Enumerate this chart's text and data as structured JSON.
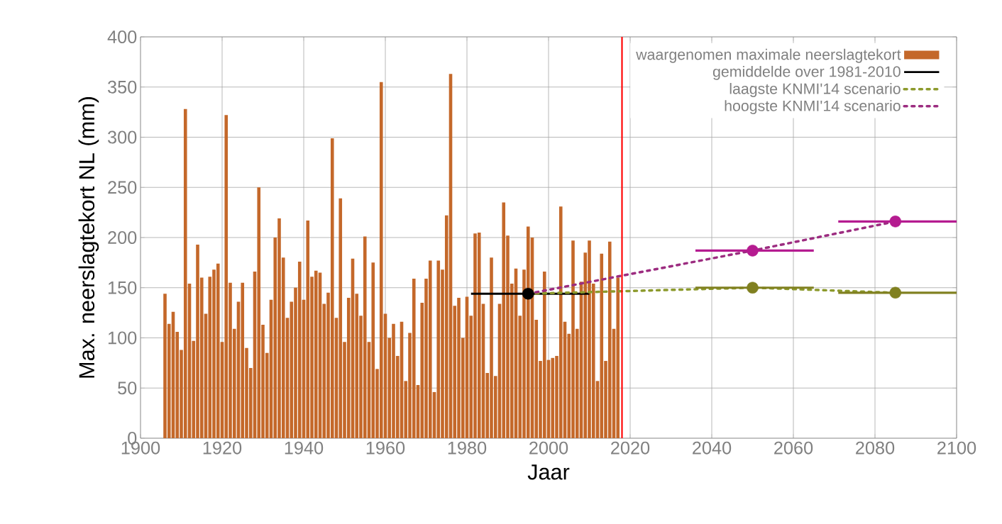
{
  "chart_data": {
    "type": "bar",
    "xlabel": "Jaar",
    "ylabel": "Max. neerslagtekort NL (mm)",
    "xlim": [
      1900,
      2100
    ],
    "ylim": [
      0,
      400
    ],
    "xticks": [
      1900,
      1920,
      1940,
      1960,
      1980,
      2000,
      2020,
      2040,
      2060,
      2080,
      2100
    ],
    "yticks": [
      0,
      50,
      100,
      150,
      200,
      250,
      300,
      350,
      400
    ],
    "grid": true,
    "legend": "top right",
    "series": [
      {
        "name": "waargenomen maximale neerslagtekort",
        "color": "#c4682a",
        "x": [
          1906,
          1907,
          1908,
          1909,
          1910,
          1911,
          1912,
          1913,
          1914,
          1915,
          1916,
          1917,
          1918,
          1919,
          1920,
          1921,
          1922,
          1923,
          1924,
          1925,
          1926,
          1927,
          1928,
          1929,
          1930,
          1931,
          1932,
          1933,
          1934,
          1935,
          1936,
          1937,
          1938,
          1939,
          1940,
          1941,
          1942,
          1943,
          1944,
          1945,
          1946,
          1947,
          1948,
          1949,
          1950,
          1951,
          1952,
          1953,
          1954,
          1955,
          1956,
          1957,
          1958,
          1959,
          1960,
          1961,
          1962,
          1963,
          1964,
          1965,
          1966,
          1967,
          1968,
          1969,
          1970,
          1971,
          1972,
          1973,
          1974,
          1975,
          1976,
          1977,
          1978,
          1979,
          1980,
          1981,
          1982,
          1983,
          1984,
          1985,
          1986,
          1987,
          1988,
          1989,
          1990,
          1991,
          1992,
          1993,
          1994,
          1995,
          1996,
          1997,
          1998,
          1999,
          2000,
          2001,
          2002,
          2003,
          2004,
          2005,
          2006,
          2007,
          2008,
          2009,
          2010,
          2011,
          2012,
          2013,
          2014,
          2015,
          2016,
          2017
        ],
        "values": [
          144,
          114,
          126,
          106,
          88,
          328,
          154,
          97,
          193,
          160,
          124,
          161,
          168,
          174,
          96,
          322,
          155,
          109,
          136,
          155,
          90,
          70,
          166,
          250,
          113,
          85,
          138,
          200,
          219,
          180,
          120,
          136,
          150,
          176,
          138,
          217,
          161,
          167,
          165,
          134,
          145,
          299,
          120,
          239,
          96,
          140,
          179,
          144,
          122,
          201,
          96,
          175,
          69,
          355,
          124,
          100,
          114,
          82,
          116,
          57,
          105,
          159,
          53,
          135,
          159,
          177,
          46,
          177,
          168,
          222,
          363,
          132,
          140,
          100,
          141,
          122,
          204,
          205,
          134,
          65,
          180,
          62,
          134,
          235,
          202,
          154,
          169,
          122,
          168,
          211,
          200,
          118,
          77,
          166,
          78,
          80,
          82,
          231,
          116,
          104,
          197,
          109,
          156,
          185,
          197,
          154,
          57,
          184,
          77,
          196,
          109,
          160
        ]
      },
      {
        "name": "gemiddelde over 1981-2010",
        "type": "scatter",
        "color": "#000000",
        "marker": "circle",
        "x": [
          1995
        ],
        "values": [
          144
        ],
        "xerrors": [
          [
            1981,
            2010
          ]
        ]
      },
      {
        "name": "laagste KNMI'14 scenario",
        "type": "line",
        "color": "#8c9a2c",
        "line_style": "dotted",
        "marker": "none",
        "x": [
          1995,
          2050,
          2085
        ],
        "values": [
          144,
          150,
          145
        ]
      },
      {
        "type": "scatter",
        "color": "#808020",
        "marker": "circle",
        "x": [
          2050,
          2085
        ],
        "values": [
          150,
          145
        ],
        "xerrors": [
          [
            2036,
            2065
          ],
          [
            2071,
            2100
          ]
        ]
      },
      {
        "name": "hoogste KNMI'14 scenario",
        "type": "line",
        "color": "#9c2c80",
        "line_style": "dotted",
        "marker": "none",
        "x": [
          1995,
          2050,
          2085
        ],
        "values": [
          144,
          187,
          216
        ]
      },
      {
        "type": "scatter",
        "color": "#b51b90",
        "marker": "circle",
        "x": [
          2050,
          2085
        ],
        "values": [
          187,
          216
        ],
        "xerrors": [
          [
            2036,
            2065
          ],
          [
            2071,
            2100
          ]
        ]
      }
    ],
    "ref_lines": [
      {
        "axis": "x",
        "value": 2018,
        "color": "#ff0000"
      }
    ]
  }
}
